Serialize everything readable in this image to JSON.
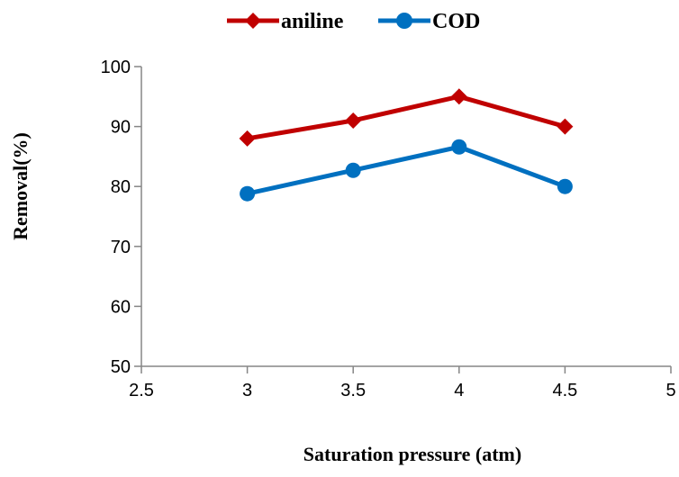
{
  "chart_data": {
    "type": "line",
    "title": "",
    "xlabel": "Saturation pressure  (atm)",
    "ylabel": "Removal(%)",
    "xlim": [
      2.5,
      5
    ],
    "ylim": [
      50,
      100
    ],
    "xticks": [
      2.5,
      3,
      3.5,
      4,
      4.5,
      5
    ],
    "yticks": [
      50,
      60,
      70,
      80,
      90,
      100
    ],
    "xtick_labels": [
      "2.5",
      "3",
      "3.5",
      "4",
      "4.5",
      "5"
    ],
    "ytick_labels": [
      "50",
      "60",
      "70",
      "80",
      "90",
      "100"
    ],
    "grid": false,
    "legend_position": "top",
    "x": [
      3,
      3.5,
      4,
      4.5
    ],
    "series": [
      {
        "name": "aniline",
        "values": [
          88,
          91,
          95,
          90
        ],
        "color": "#C00000",
        "marker": "diamond"
      },
      {
        "name": "COD",
        "values": [
          78.8,
          82.7,
          86.6,
          80
        ],
        "color": "#0070C0",
        "marker": "circle"
      }
    ]
  }
}
